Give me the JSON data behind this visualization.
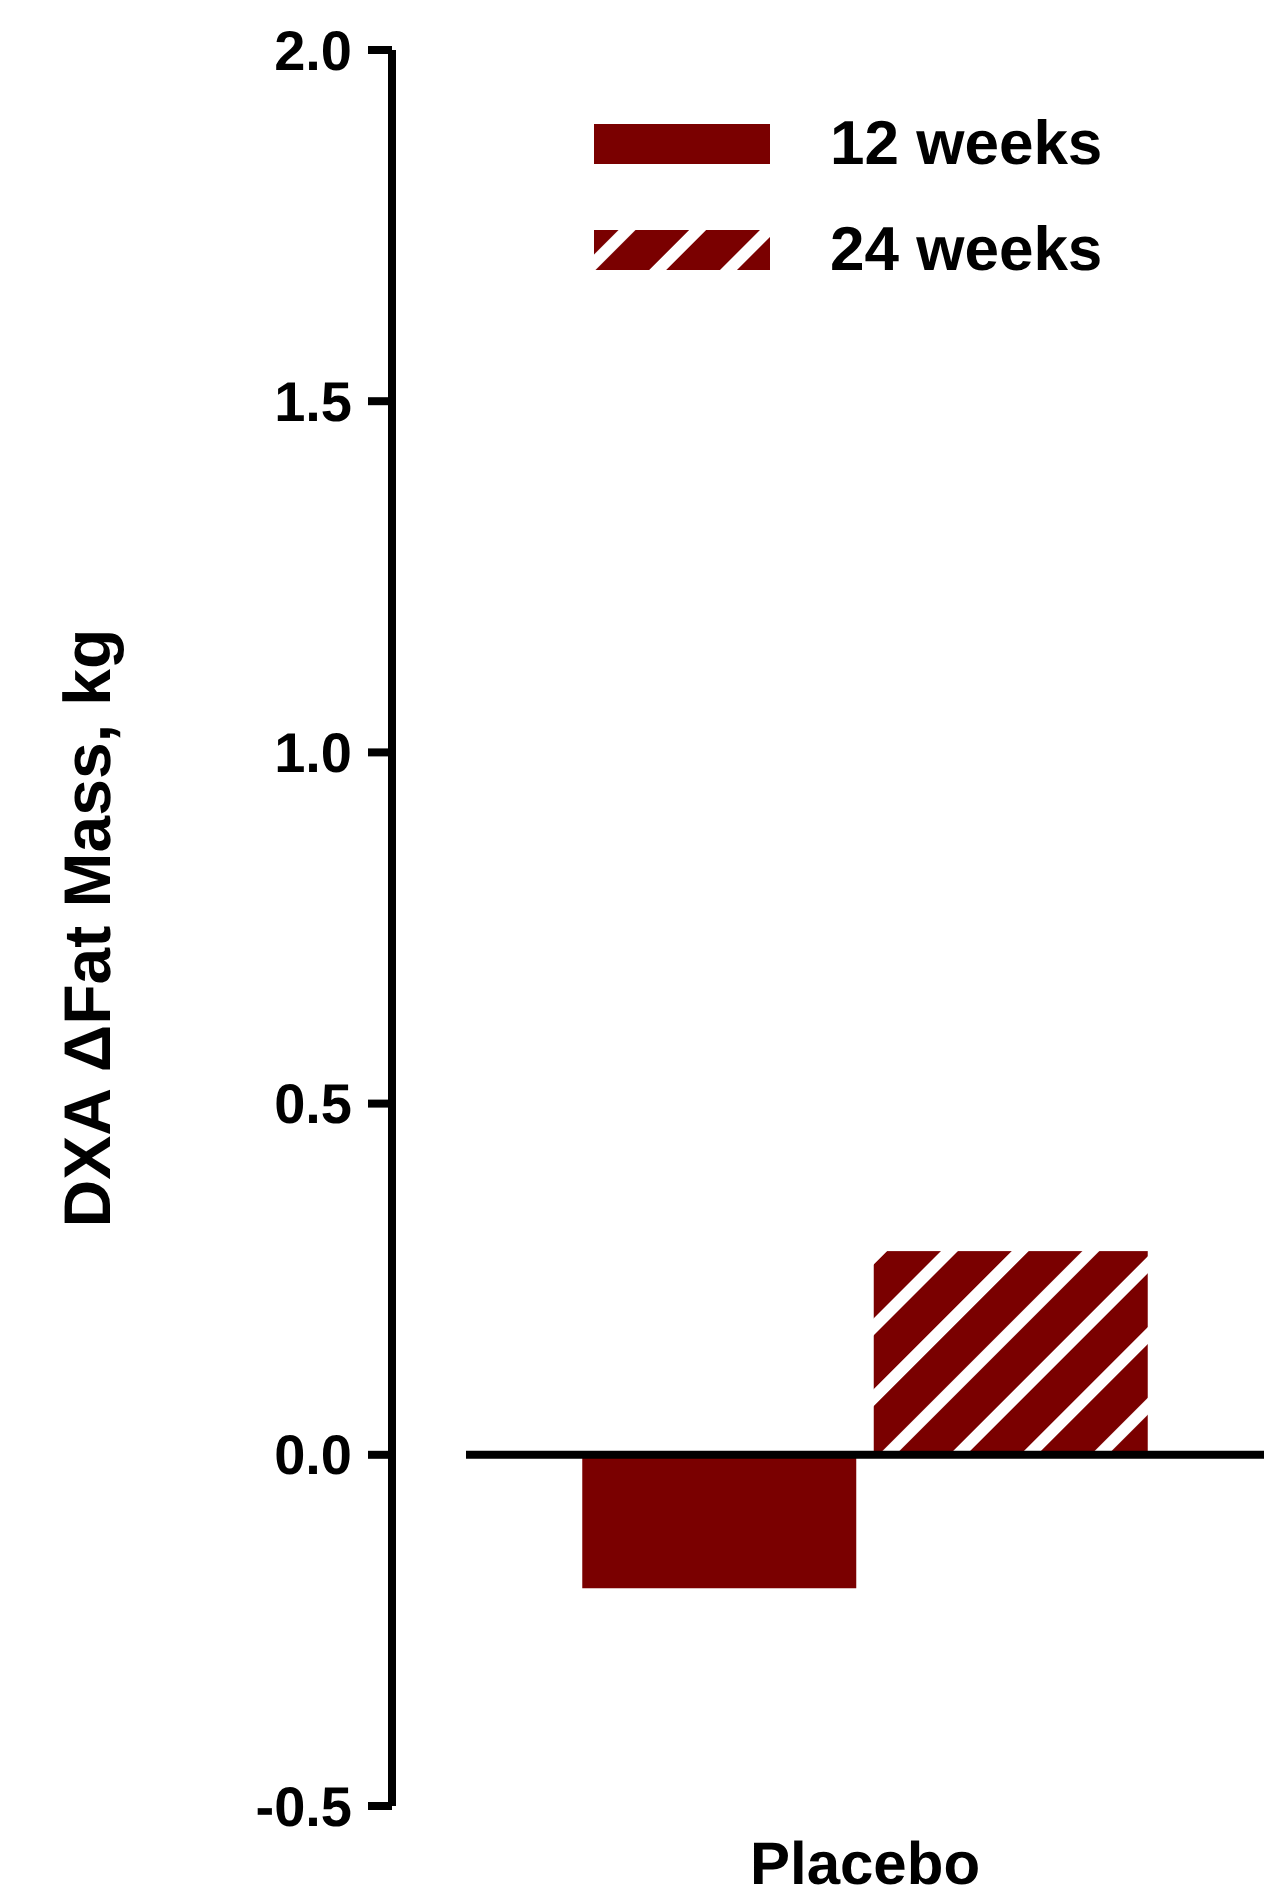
{
  "chart_data": {
    "type": "bar",
    "ylabel": "DXA ΔFat Mass, kg",
    "categories": [
      "Placebo"
    ],
    "series": [
      {
        "name": "12 weeks",
        "color": "#7a0000",
        "values": [
          -0.19
        ]
      },
      {
        "name": "24 weeks",
        "color": "#7a0000",
        "values": [
          0.29
        ]
      }
    ],
    "ylim": [
      -0.5,
      2.0
    ],
    "yticks": [
      {
        "value": -0.5,
        "label": "-0.5"
      },
      {
        "value": 0,
        "label": "0.0"
      },
      {
        "value": 0.5,
        "label": "0.5"
      },
      {
        "value": 1,
        "label": "1.0"
      },
      {
        "value": 1.5,
        "label": "1.5"
      },
      {
        "value": 2,
        "label": "2.0"
      }
    ],
    "legend": "top right"
  }
}
